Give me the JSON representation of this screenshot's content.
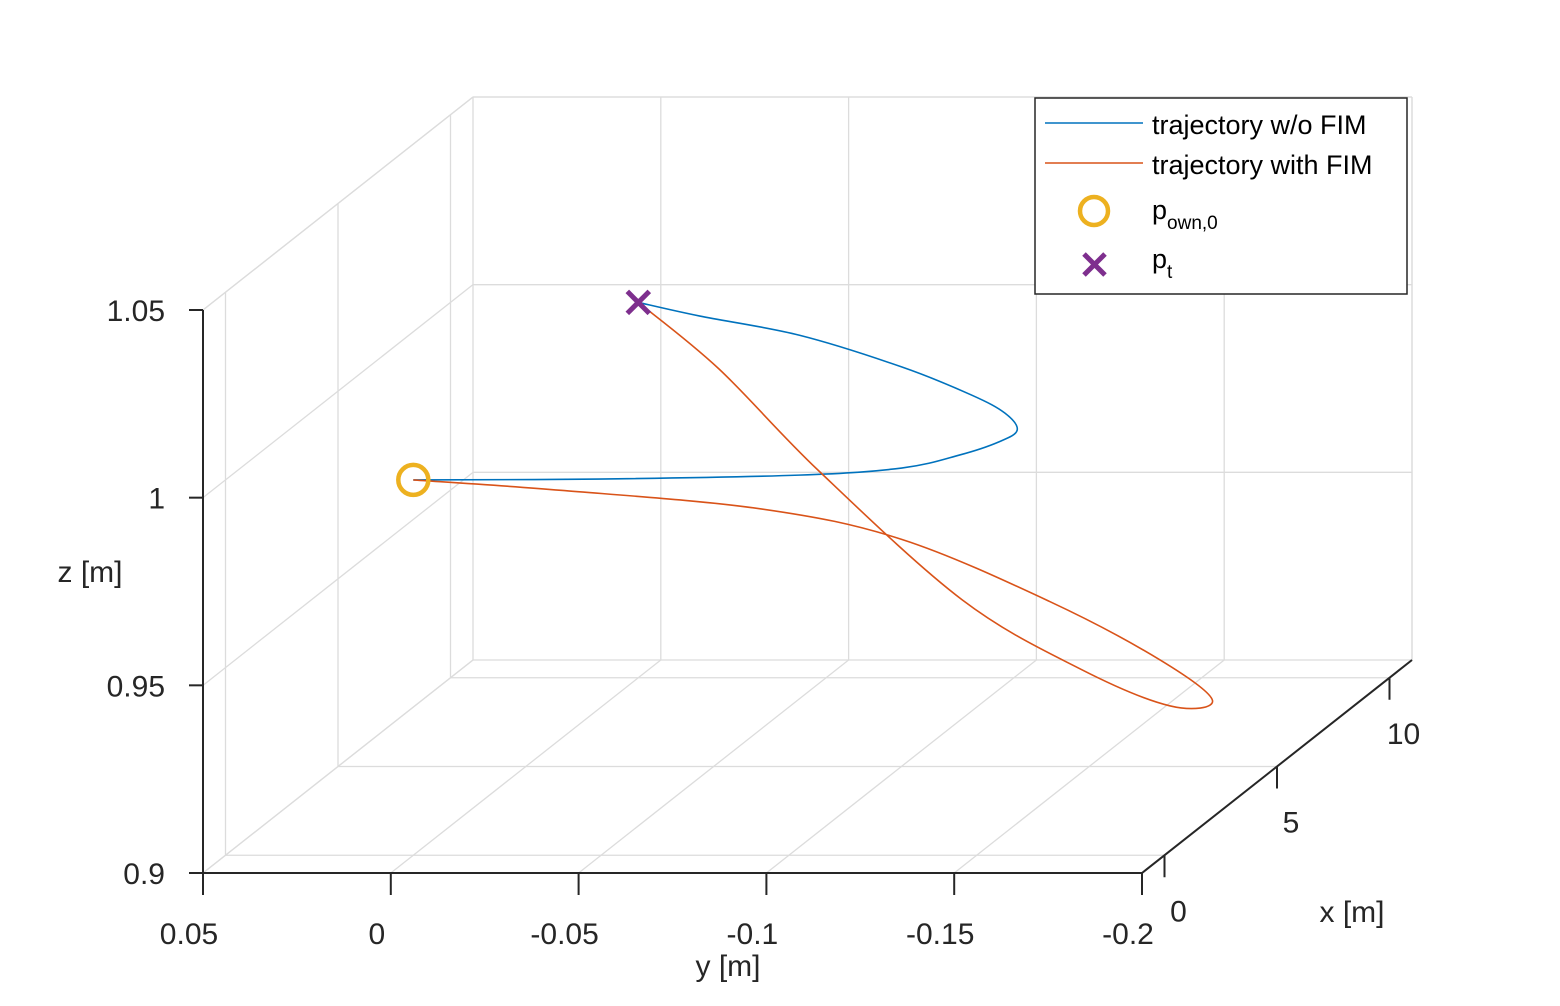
{
  "chart_data": {
    "type": "line3d",
    "title": "",
    "xlabel": "x [m]",
    "ylabel": "y [m]",
    "zlabel": "z [m]",
    "xlim": [
      -1,
      11
    ],
    "ylim": [
      -0.2,
      0.05
    ],
    "zlim": [
      0.9,
      1.05
    ],
    "y_reversed": true,
    "grid": true,
    "legend_position": "top-right",
    "xticks": [
      0,
      5,
      10
    ],
    "xtick_labels": [
      "0",
      "5",
      "10"
    ],
    "yticks": [
      0.05,
      0,
      -0.05,
      -0.1,
      -0.15,
      -0.2
    ],
    "ytick_labels": [
      "0.05",
      "0",
      "-0.05",
      "-0.1",
      "-0.15",
      "-0.2"
    ],
    "zticks": [
      0.9,
      0.95,
      1,
      1.05
    ],
    "ztick_labels": [
      "0.9",
      "0.95",
      "1",
      "1.05"
    ],
    "series": [
      {
        "name": "trajectory w/o FIM",
        "color": "#0072BD",
        "x": [
          0,
          0.05,
          0.27,
          0.67,
          1.4,
          2.13,
          2.8,
          3.76,
          4.78,
          6.36,
          8.15,
          9.23,
          10
        ],
        "y": [
          0,
          -0.049,
          -0.101,
          -0.126,
          -0.137,
          -0.143,
          -0.144,
          -0.135,
          -0.12,
          -0.092,
          -0.054,
          -0.021,
          0
        ],
        "z": [
          1,
          1,
          1,
          1,
          1,
          1,
          1,
          1,
          1,
          1,
          1,
          1,
          1
        ]
      },
      {
        "name": "trajectory with FIM",
        "color": "#D95319",
        "x": [
          0,
          0.05,
          0.27,
          0.67,
          1.4,
          2.13,
          2.8,
          3.76,
          4.78,
          6.36,
          8.15,
          9.23,
          10
        ],
        "y": [
          0,
          -0.039,
          -0.091,
          -0.126,
          -0.161,
          -0.186,
          -0.196,
          -0.179,
          -0.149,
          -0.108,
          -0.059,
          -0.026,
          0
        ],
        "z": [
          1,
          0.997,
          0.991,
          0.981,
          0.961,
          0.942,
          0.928,
          0.922,
          0.927,
          0.938,
          0.964,
          0.986,
          1
        ]
      }
    ],
    "markers": [
      {
        "name": "p",
        "subscript": "own,0",
        "shape": "circle",
        "color": "#EDB120",
        "x": 0,
        "y": 0,
        "z": 1
      },
      {
        "name": "p",
        "subscript": "t",
        "shape": "x",
        "color": "#7E2F8E",
        "x": 10,
        "y": 0,
        "z": 1
      }
    ]
  }
}
